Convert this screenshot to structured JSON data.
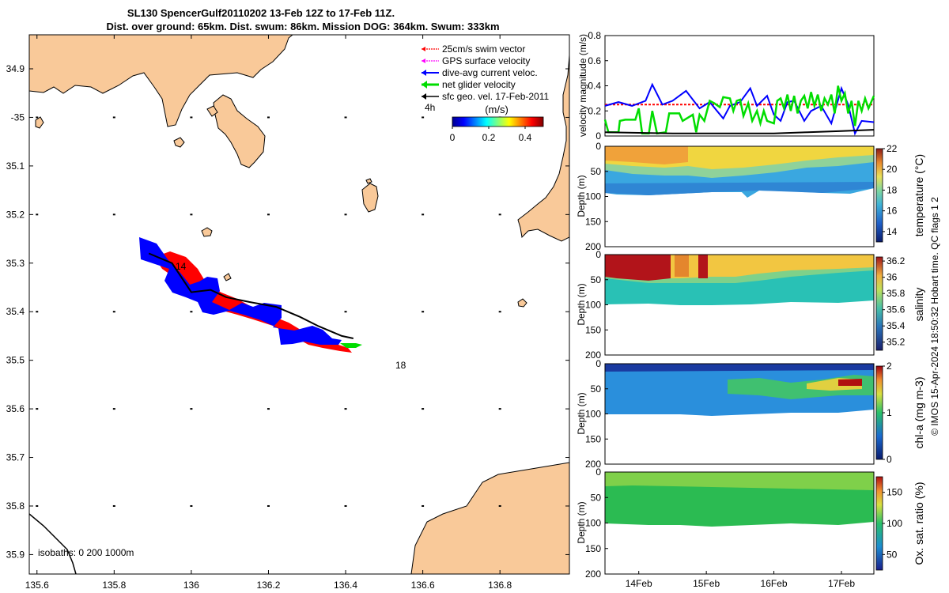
{
  "figure": {
    "title_line1": "SL130 SpencerGulf20110202 13-Feb 12Z to 17-Feb 11Z.",
    "title_line2": "Dist. over ground: 65km. Dist. swum: 86km. Mission DOG: 364km. Swum: 333km",
    "footer": "© IMOS 15-Apr-2024 18:50:32 Hobart time. QC flags 1  2",
    "colors": {
      "land": "#f9c999",
      "ocean": "#ffffff",
      "swim": "#ff0000",
      "gps": "#ff00ff",
      "current": "#0000ff",
      "net": "#00dd00",
      "sfc": "#000000"
    }
  },
  "chart_data": [
    {
      "type": "map",
      "xlim": [
        135.58,
        136.98
      ],
      "ylim": [
        -35.94,
        -34.83
      ],
      "x_ticks": [
        135.6,
        135.8,
        136,
        136.2,
        136.4,
        136.6,
        136.8
      ],
      "x_tick_labels": [
        "135.6",
        "135.8",
        "136",
        "136.2",
        "136.4",
        "136.6",
        "136.8"
      ],
      "y_ticks": [
        -34.9,
        -35.0,
        -35.1,
        -35.2,
        -35.3,
        -35.4,
        -35.5,
        -35.6,
        -35.7,
        -35.8,
        -35.9
      ],
      "y_tick_labels": [
        "34.9",
        "-35",
        "35.1",
        "35.2",
        "35.3",
        "35.4",
        "35.5",
        "35.6",
        "35.7",
        "35.8",
        "35.9"
      ],
      "legend": [
        "25cm/s swim vector",
        "GPS surface velocity",
        "dive-avg current veloc.",
        "net glider velocity",
        "sfc geo. vel. 17-Feb-2011"
      ],
      "legend_placement": "top-right",
      "colorbar": {
        "title": "(m/s)",
        "range": [
          0,
          0.5
        ],
        "ticks": [
          0,
          0.2,
          0.4
        ],
        "tick_labels": [
          "0",
          "0.2",
          "0.4"
        ],
        "colormap": "jet"
      },
      "vector_interval_label": "4h",
      "day_labels": [
        {
          "text": "14",
          "lon": 135.97,
          "lat": -35.31
        },
        {
          "text": "18",
          "lon": 136.55,
          "lat": -35.49
        }
      ],
      "isobaths_label": "isobaths: 0   200  1000m",
      "track": [
        {
          "lon": 135.89,
          "lat": -35.28
        },
        {
          "lon": 135.95,
          "lat": -35.3
        },
        {
          "lon": 136.0,
          "lat": -35.36
        },
        {
          "lon": 136.05,
          "lat": -35.355
        },
        {
          "lon": 136.09,
          "lat": -35.37
        },
        {
          "lon": 136.15,
          "lat": -35.38
        },
        {
          "lon": 136.22,
          "lat": -35.39
        },
        {
          "lon": 136.28,
          "lat": -35.41
        },
        {
          "lon": 136.33,
          "lat": -35.43
        },
        {
          "lon": 136.39,
          "lat": -35.45
        },
        {
          "lon": 136.42,
          "lat": -35.455
        }
      ]
    },
    {
      "type": "line",
      "ylabel": "velocity magnitude (m/s)",
      "ylim": [
        0,
        0.8
      ],
      "y_ticks": [
        0,
        0.2,
        0.4,
        0.6,
        0.8
      ],
      "x_unit": "day",
      "xlim": [
        13.5,
        17.48
      ],
      "series": [
        {
          "color": "#ff0000",
          "values": [
            [
              13.5,
              0.25
            ],
            [
              17.48,
              0.25
            ]
          ]
        },
        {
          "color": "#0000ff",
          "values": [
            [
              13.5,
              0.24
            ],
            [
              13.7,
              0.27
            ],
            [
              13.9,
              0.24
            ],
            [
              14.1,
              0.28
            ],
            [
              14.2,
              0.41
            ],
            [
              14.35,
              0.25
            ],
            [
              14.5,
              0.28
            ],
            [
              14.7,
              0.36
            ],
            [
              14.9,
              0.22
            ],
            [
              15.05,
              0.27
            ],
            [
              15.25,
              0.14
            ],
            [
              15.35,
              0.24
            ],
            [
              15.5,
              0.27
            ],
            [
              15.65,
              0.38
            ],
            [
              15.75,
              0.24
            ],
            [
              15.9,
              0.32
            ],
            [
              16.0,
              0.17
            ],
            [
              16.1,
              0.12
            ],
            [
              16.2,
              0.27
            ],
            [
              16.3,
              0.28
            ],
            [
              16.45,
              0.12
            ],
            [
              16.55,
              0.2
            ],
            [
              16.7,
              0.24
            ],
            [
              16.85,
              0.1
            ],
            [
              17.0,
              0.38
            ],
            [
              17.1,
              0.25
            ],
            [
              17.2,
              0.02
            ],
            [
              17.3,
              0.12
            ],
            [
              17.48,
              0.11
            ]
          ]
        },
        {
          "color": "#00dd00",
          "values": [
            [
              13.5,
              0.13
            ],
            [
              13.55,
              0.03
            ],
            [
              13.7,
              0.03
            ],
            [
              13.72,
              0.12
            ],
            [
              13.8,
              0.13
            ],
            [
              13.95,
              0.13
            ],
            [
              14.0,
              0.22
            ],
            [
              14.05,
              0.02
            ],
            [
              14.15,
              0.02
            ],
            [
              14.2,
              0.2
            ],
            [
              14.27,
              0.02
            ],
            [
              14.4,
              0.03
            ],
            [
              14.45,
              0.18
            ],
            [
              14.6,
              0.18
            ],
            [
              14.65,
              0.12
            ],
            [
              14.8,
              0.17
            ],
            [
              14.85,
              0.03
            ],
            [
              14.9,
              0.17
            ],
            [
              14.97,
              0.12
            ],
            [
              15.05,
              0.28
            ],
            [
              15.12,
              0.26
            ],
            [
              15.2,
              0.23
            ],
            [
              15.25,
              0.31
            ],
            [
              15.35,
              0.3
            ],
            [
              15.4,
              0.2
            ],
            [
              15.45,
              0.28
            ],
            [
              15.5,
              0.29
            ],
            [
              15.55,
              0.16
            ],
            [
              15.62,
              0.26
            ],
            [
              15.68,
              0.12
            ],
            [
              15.75,
              0.2
            ],
            [
              15.8,
              0.1
            ],
            [
              15.85,
              0.2
            ],
            [
              15.9,
              0.12
            ],
            [
              16.0,
              0.1
            ],
            [
              16.05,
              0.28
            ],
            [
              16.1,
              0.3
            ],
            [
              16.15,
              0.22
            ],
            [
              16.2,
              0.33
            ],
            [
              16.25,
              0.2
            ],
            [
              16.3,
              0.32
            ],
            [
              16.35,
              0.18
            ],
            [
              16.4,
              0.28
            ],
            [
              16.45,
              0.32
            ],
            [
              16.5,
              0.22
            ],
            [
              16.55,
              0.35
            ],
            [
              16.6,
              0.24
            ],
            [
              16.65,
              0.33
            ],
            [
              16.7,
              0.2
            ],
            [
              16.75,
              0.3
            ],
            [
              16.8,
              0.25
            ],
            [
              16.85,
              0.33
            ],
            [
              16.9,
              0.18
            ],
            [
              16.95,
              0.4
            ],
            [
              17.0,
              0.28
            ],
            [
              17.05,
              0.34
            ],
            [
              17.1,
              0.18
            ],
            [
              17.15,
              0.28
            ],
            [
              17.2,
              0.08
            ],
            [
              17.25,
              0.28
            ],
            [
              17.3,
              0.2
            ],
            [
              17.35,
              0.3
            ],
            [
              17.4,
              0.22
            ],
            [
              17.48,
              0.32
            ]
          ]
        },
        {
          "color": "#000000",
          "values": [
            [
              13.5,
              0.03
            ],
            [
              14.5,
              0.02
            ],
            [
              15.5,
              0.02
            ],
            [
              16.0,
              0.02
            ],
            [
              16.5,
              0.03
            ],
            [
              17.0,
              0.04
            ],
            [
              17.48,
              0.05
            ]
          ]
        }
      ]
    },
    {
      "type": "heatmap",
      "ylabel": "Depth (m)",
      "ylim": [
        0,
        200
      ],
      "y_ticks": [
        0,
        50,
        100,
        150,
        200
      ],
      "colorbar_label": "temperature (°C)",
      "clim": [
        13,
        22
      ],
      "cbar_ticks": [
        14,
        16,
        18,
        20,
        22
      ]
    },
    {
      "type": "heatmap",
      "ylabel": "Depth (m)",
      "ylim": [
        0,
        200
      ],
      "y_ticks": [
        0,
        50,
        100,
        150,
        200
      ],
      "colorbar_label": "salinity",
      "clim": [
        35.1,
        36.25
      ],
      "cbar_ticks": [
        35.2,
        35.4,
        35.6,
        35.8,
        36,
        36.2
      ]
    },
    {
      "type": "heatmap",
      "ylabel": "Depth (m)",
      "ylim": [
        0,
        200
      ],
      "y_ticks": [
        0,
        50,
        100,
        150,
        200
      ],
      "colorbar_label": "chl-a (mg m-3)",
      "clim": [
        0,
        2
      ],
      "cbar_ticks": [
        0,
        1,
        2
      ]
    },
    {
      "type": "heatmap",
      "ylabel": "Depth (m)",
      "ylim": [
        0,
        200
      ],
      "y_ticks": [
        0,
        50,
        100,
        150,
        200
      ],
      "colorbar_label": "Ox. sat. ratio (%)",
      "clim": [
        25,
        175
      ],
      "cbar_ticks": [
        50,
        100,
        150
      ],
      "x_ticks": [
        "14Feb",
        "15Feb",
        "16Feb",
        "17Feb"
      ]
    }
  ]
}
